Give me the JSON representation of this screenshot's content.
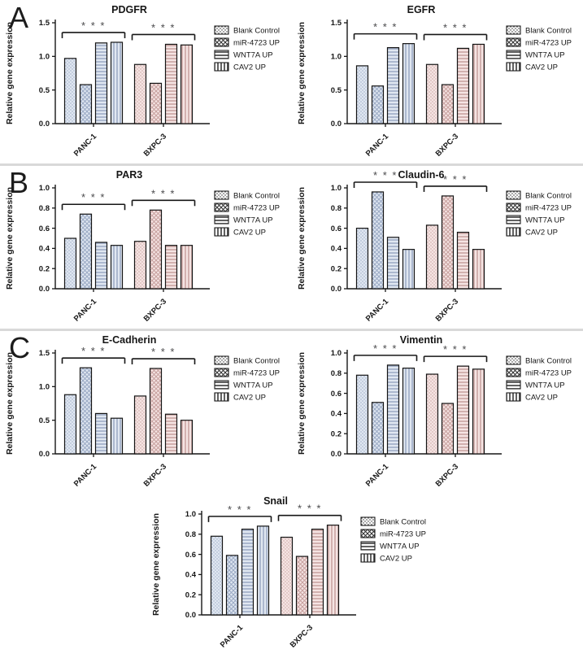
{
  "figure": {
    "panels": [
      {
        "label": "A",
        "charts": [
          "pdgfr",
          "egfr"
        ]
      },
      {
        "label": "B",
        "charts": [
          "par3",
          "claudin6"
        ]
      },
      {
        "label": "C",
        "charts": [
          "ecadherin",
          "vimentin",
          "snail"
        ]
      }
    ]
  },
  "legend": {
    "items": [
      {
        "label": "Blank Control",
        "pattern": "dots"
      },
      {
        "label": "miR-4723 UP",
        "pattern": "cross"
      },
      {
        "label": "WNT7A UP",
        "pattern": "hlines"
      },
      {
        "label": "CAV2 UP",
        "pattern": "vlines"
      }
    ],
    "position": "right"
  },
  "colors": {
    "axis": "#161616",
    "bar_outline": "#141414",
    "significance": "#4a4a4c",
    "divider": "#d9d9d9",
    "groups": [
      {
        "category": "PANC-1",
        "bg": "#e0e7f1",
        "line": "#9aa9c4"
      },
      {
        "category": "BXPC-3",
        "bg": "#f5e4e3",
        "line": "#c7a09e"
      }
    ],
    "legend_swatch": {
      "bg": "#fdfdfd",
      "line": "#2e2e2e"
    }
  },
  "chart_data": [
    {
      "id": "pdgfr",
      "type": "bar",
      "title": "PDGFR",
      "ylabel": "Relative gene expression",
      "ylim": [
        0,
        1.5
      ],
      "yticks": [
        0,
        0.5,
        1.0,
        1.5
      ],
      "categories": [
        "PANC-1",
        "BXPC-3"
      ],
      "series": [
        {
          "name": "Blank Control",
          "values": [
            0.97,
            0.88
          ]
        },
        {
          "name": "miR-4723 UP",
          "values": [
            0.58,
            0.6
          ]
        },
        {
          "name": "WNT7A UP",
          "values": [
            1.2,
            1.18
          ]
        },
        {
          "name": "CAV2 UP",
          "values": [
            1.21,
            1.17
          ]
        }
      ],
      "significance": [
        "* * *",
        "* * *"
      ]
    },
    {
      "id": "egfr",
      "type": "bar",
      "title": "EGFR",
      "ylabel": "Relative gene expression",
      "ylim": [
        0,
        1.5
      ],
      "yticks": [
        0,
        0.5,
        1.0,
        1.5
      ],
      "categories": [
        "PANC-1",
        "BXPC-3"
      ],
      "series": [
        {
          "name": "Blank Control",
          "values": [
            0.86,
            0.88
          ]
        },
        {
          "name": "miR-4723 UP",
          "values": [
            0.56,
            0.58
          ]
        },
        {
          "name": "WNT7A UP",
          "values": [
            1.13,
            1.12
          ]
        },
        {
          "name": "CAV2 UP",
          "values": [
            1.19,
            1.18
          ]
        }
      ],
      "significance": [
        "* * *",
        "* * *"
      ]
    },
    {
      "id": "par3",
      "type": "bar",
      "title": "PAR3",
      "ylabel": "Relative gene expression",
      "ylim": [
        0,
        1.0
      ],
      "yticks": [
        0,
        0.2,
        0.4,
        0.6,
        0.8,
        1.0
      ],
      "categories": [
        "PANC-1",
        "BXPC-3"
      ],
      "series": [
        {
          "name": "Blank Control",
          "values": [
            0.5,
            0.47
          ]
        },
        {
          "name": "miR-4723 UP",
          "values": [
            0.74,
            0.78
          ]
        },
        {
          "name": "WNT7A UP",
          "values": [
            0.46,
            0.43
          ]
        },
        {
          "name": "CAV2 UP",
          "values": [
            0.43,
            0.43
          ]
        }
      ],
      "significance": [
        "* * *",
        "* * *"
      ]
    },
    {
      "id": "claudin6",
      "type": "bar",
      "title": "Claudin-6",
      "ylabel": "Relative gene expression",
      "ylim": [
        0,
        1.0
      ],
      "yticks": [
        0,
        0.2,
        0.4,
        0.6,
        0.8,
        1.0
      ],
      "categories": [
        "PANC-1",
        "BXPC-3"
      ],
      "series": [
        {
          "name": "Blank Control",
          "values": [
            0.6,
            0.63
          ]
        },
        {
          "name": "miR-4723 UP",
          "values": [
            0.96,
            0.92
          ]
        },
        {
          "name": "WNT7A UP",
          "values": [
            0.51,
            0.56
          ]
        },
        {
          "name": "CAV2 UP",
          "values": [
            0.39,
            0.39
          ]
        }
      ],
      "significance": [
        "* * *",
        "* * *"
      ]
    },
    {
      "id": "ecadherin",
      "type": "bar",
      "title": "E-Cadherin",
      "ylabel": "Relative gene expression",
      "ylim": [
        0,
        1.5
      ],
      "yticks": [
        0,
        0.5,
        1.0,
        1.5
      ],
      "categories": [
        "PANC-1",
        "BXPC-3"
      ],
      "series": [
        {
          "name": "Blank Control",
          "values": [
            0.88,
            0.86
          ]
        },
        {
          "name": "miR-4723 UP",
          "values": [
            1.28,
            1.27
          ]
        },
        {
          "name": "WNT7A UP",
          "values": [
            0.6,
            0.59
          ]
        },
        {
          "name": "CAV2 UP",
          "values": [
            0.53,
            0.5
          ]
        }
      ],
      "significance": [
        "* * *",
        "* * *"
      ]
    },
    {
      "id": "vimentin",
      "type": "bar",
      "title": "Vimentin",
      "ylabel": "Relative gene expression",
      "ylim": [
        0,
        1.0
      ],
      "yticks": [
        0,
        0.2,
        0.4,
        0.6,
        0.8,
        1.0
      ],
      "categories": [
        "PANC-1",
        "BXPC-3"
      ],
      "series": [
        {
          "name": "Blank Control",
          "values": [
            0.78,
            0.79
          ]
        },
        {
          "name": "miR-4723 UP",
          "values": [
            0.51,
            0.5
          ]
        },
        {
          "name": "WNT7A UP",
          "values": [
            0.88,
            0.87
          ]
        },
        {
          "name": "CAV2 UP",
          "values": [
            0.85,
            0.84
          ]
        }
      ],
      "significance": [
        "* * *",
        "* * *"
      ]
    },
    {
      "id": "snail",
      "type": "bar",
      "title": "Snail",
      "ylabel": "Relative gene expression",
      "ylim": [
        0,
        1.0
      ],
      "yticks": [
        0,
        0.2,
        0.4,
        0.6,
        0.8,
        1.0
      ],
      "categories": [
        "PANC-1",
        "BXPC-3"
      ],
      "series": [
        {
          "name": "Blank Control",
          "values": [
            0.78,
            0.77
          ]
        },
        {
          "name": "miR-4723 UP",
          "values": [
            0.59,
            0.58
          ]
        },
        {
          "name": "WNT7A UP",
          "values": [
            0.85,
            0.85
          ]
        },
        {
          "name": "CAV2 UP",
          "values": [
            0.88,
            0.89
          ]
        }
      ],
      "significance": [
        "* * *",
        "* * *"
      ]
    }
  ]
}
